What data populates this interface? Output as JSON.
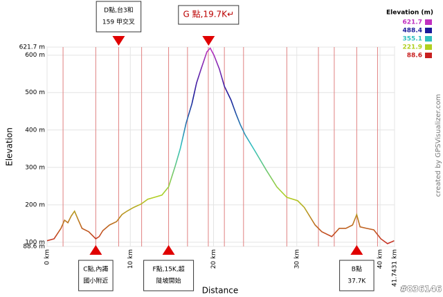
{
  "chart_data": {
    "type": "line",
    "x_label": "Distance",
    "y_label": "Elevation",
    "xlim": [
      0,
      41.7431
    ],
    "ylim": [
      88.6,
      621.7
    ],
    "xticks": [
      {
        "value": 0,
        "label": "0 km"
      },
      {
        "value": 10,
        "label": "10 km"
      },
      {
        "value": 20,
        "label": "20 km"
      },
      {
        "value": 30,
        "label": "30 km"
      },
      {
        "value": 40,
        "label": "40 km"
      },
      {
        "value": 41.7431,
        "label": "41.7431 km"
      }
    ],
    "yticks": [
      {
        "value": 88.6,
        "label": "88.6 m"
      },
      {
        "value": 100,
        "label": "100 m"
      },
      {
        "value": 200,
        "label": "200 m"
      },
      {
        "value": 300,
        "label": "300 m"
      },
      {
        "value": 400,
        "label": "400 m"
      },
      {
        "value": 500,
        "label": "500 m"
      },
      {
        "value": 600,
        "label": "600 m"
      },
      {
        "value": 621.7,
        "label": "621.7 m"
      }
    ],
    "grid": true,
    "x": [
      0,
      0.84,
      1.67,
      2.1,
      2.5,
      2.9,
      3.3,
      3.76,
      4.2,
      5.0,
      5.85,
      6.26,
      6.7,
      7.5,
      8.35,
      9.0,
      9.6,
      10.4,
      11.3,
      12.1,
      12.9,
      13.8,
      14.6,
      15.4,
      16.0,
      16.7,
      17.4,
      17.96,
      18.5,
      19.2,
      19.6,
      20.05,
      20.7,
      21.3,
      22.1,
      22.7,
      23.2,
      23.8,
      25.05,
      26.3,
      27.6,
      28.8,
      30.1,
      30.9,
      32.2,
      33.0,
      34.2,
      35.1,
      35.9,
      36.7,
      37.2,
      37.6,
      38.4,
      39.25,
      40.1,
      40.9,
      41.7
    ],
    "series": [
      {
        "values": [
          104,
          109,
          137,
          159,
          152,
          170,
          183,
          159,
          137,
          128,
          109,
          115,
          131,
          146,
          155,
          174,
          183,
          193,
          202,
          215,
          220,
          226,
          248,
          304,
          350,
          418,
          470,
          526,
          563,
          609,
          619,
          600,
          563,
          517,
          480,
          443,
          415,
          387,
          341,
          294,
          248,
          220,
          211,
          193,
          146,
          128,
          115,
          137,
          137,
          146,
          174,
          141,
          137,
          133,
          109,
          96,
          104
        ]
      }
    ],
    "waypoint_lines": [
      1.92,
      5.85,
      8.6,
      11.36,
      14.6,
      16.87,
      19.37,
      21.3,
      23.6,
      28.8,
      32.6,
      34.5,
      37.2,
      39.7
    ],
    "legend": {
      "title": "Elevation (m)",
      "entries": [
        {
          "value": 621.7,
          "color": "#c030c0"
        },
        {
          "value": 488.4,
          "color": "#1a1a9a"
        },
        {
          "value": 355.1,
          "color": "#30c0c0"
        },
        {
          "value": 221.9,
          "color": "#b0d020"
        },
        {
          "value": 88.6,
          "color": "#c82020"
        }
      ]
    },
    "annotations": [
      {
        "x": 8.6,
        "position": "top",
        "lines": [
          "D點,台3和",
          "159 甲交叉"
        ]
      },
      {
        "x": 19.4,
        "position": "top",
        "lines": [
          "G 點,19.7K↵"
        ]
      },
      {
        "x": 5.85,
        "position": "bottom",
        "lines": [
          "C點,內譝",
          "國小附近"
        ]
      },
      {
        "x": 14.6,
        "position": "bottom",
        "lines": [
          "F點,15K,超",
          "陡坡開始"
        ]
      },
      {
        "x": 37.2,
        "position": "bottom",
        "lines": [
          "B點",
          "37.7K"
        ]
      }
    ],
    "watermark": "created by GPSVisualizer.com",
    "image_id": "#836146"
  }
}
